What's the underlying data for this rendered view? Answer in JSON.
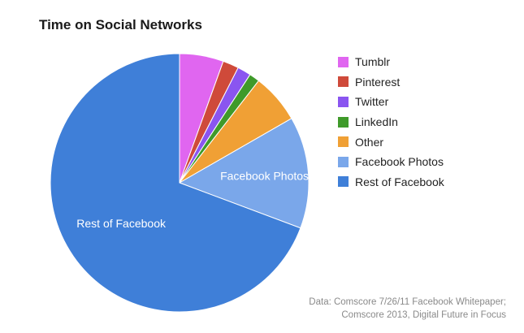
{
  "chart_data": {
    "type": "pie",
    "title": "Time on Social Networks",
    "slices": [
      {
        "label": "Tumblr",
        "value": 5.5,
        "color": "#e066f0"
      },
      {
        "label": "Pinterest",
        "value": 2.0,
        "color": "#cf4a3a"
      },
      {
        "label": "Twitter",
        "value": 1.7,
        "color": "#8a55f0"
      },
      {
        "label": "LinkedIn",
        "value": 1.3,
        "color": "#3f9a2a"
      },
      {
        "label": "Other",
        "value": 6.2,
        "color": "#f0a035"
      },
      {
        "label": "Facebook Photos",
        "value": 14.0,
        "color": "#7aa7ea"
      },
      {
        "label": "Rest of Facebook",
        "value": 69.3,
        "color": "#3f7fd8"
      }
    ],
    "slice_labels": {
      "Facebook Photos": "Facebook Photos",
      "Rest of Facebook": "Rest of Facebook"
    },
    "legend_position": "right"
  },
  "source": {
    "line1": "Data: Comscore 7/26/11 Facebook Whitepaper;",
    "line2": "Comscore 2013, Digital Future in Focus"
  }
}
